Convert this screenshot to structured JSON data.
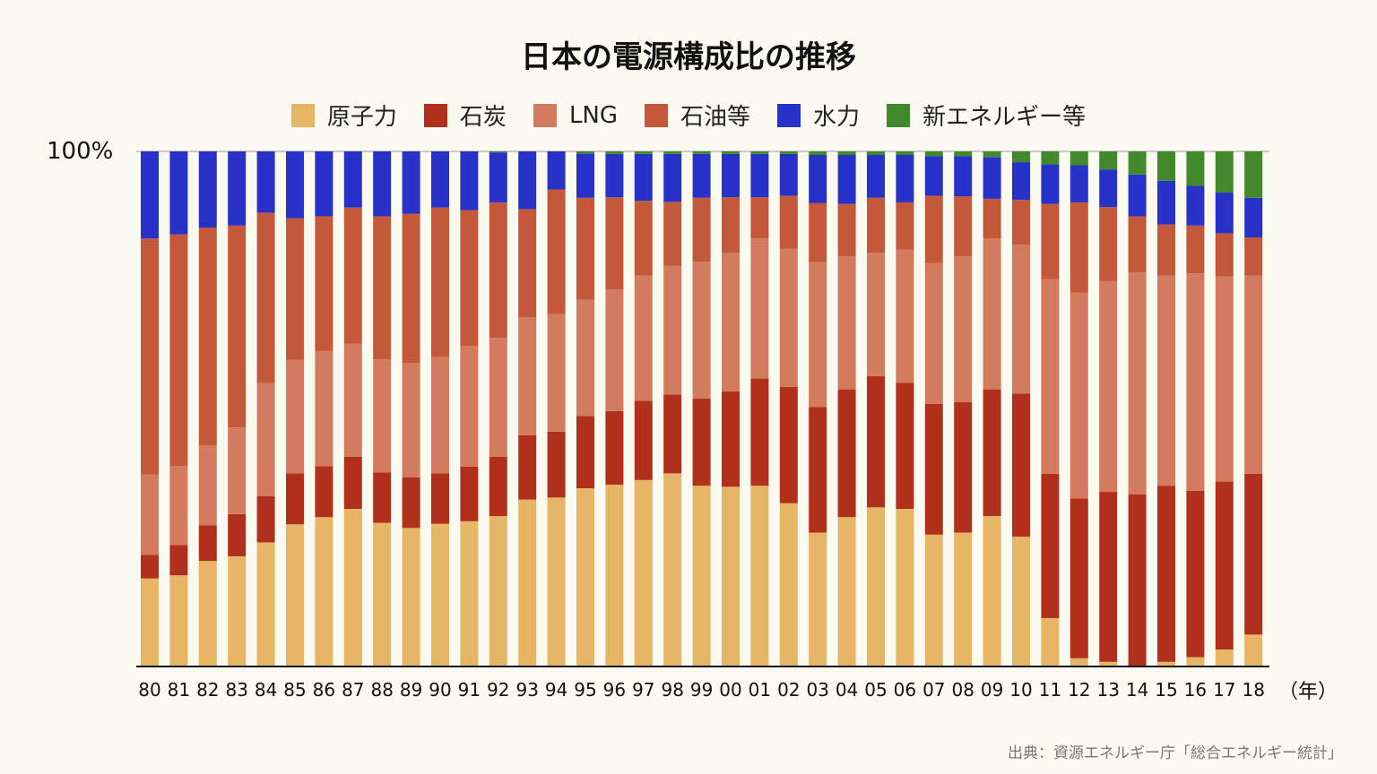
{
  "chart_data": {
    "type": "bar",
    "stacked": true,
    "percent_stacked": true,
    "title": "日本の電源構成比の推移",
    "ylabel_top": "100%",
    "xunit": "（年）",
    "source": "出典：資源エネルギー庁「総合エネルギー統計」",
    "ylim": [
      0,
      100
    ],
    "legend_position": "top",
    "grid": false,
    "categories": [
      "80",
      "81",
      "82",
      "83",
      "84",
      "85",
      "86",
      "87",
      "88",
      "89",
      "90",
      "91",
      "92",
      "93",
      "94",
      "95",
      "96",
      "97",
      "98",
      "99",
      "00",
      "01",
      "02",
      "03",
      "04",
      "05",
      "06",
      "07",
      "08",
      "09",
      "10",
      "11",
      "12",
      "13",
      "14",
      "15",
      "16",
      "17",
      "18"
    ],
    "series": [
      {
        "name": "原子力",
        "color": "#e6b566",
        "values": [
          17.1,
          17.7,
          20.5,
          21.4,
          24.1,
          27.6,
          29.0,
          30.6,
          27.9,
          26.9,
          27.7,
          28.2,
          29.2,
          32.4,
          32.8,
          34.6,
          35.3,
          36.2,
          37.5,
          35.1,
          34.9,
          35.1,
          31.7,
          26.0,
          29.0,
          30.9,
          30.6,
          25.6,
          26.0,
          29.2,
          25.2,
          9.4,
          1.6,
          0.9,
          0.0,
          0.9,
          1.8,
          3.3,
          6.2
        ]
      },
      {
        "name": "石炭",
        "color": "#b0301c",
        "values": [
          4.6,
          5.9,
          6.9,
          8.2,
          9.0,
          9.9,
          9.9,
          10.1,
          9.8,
          9.8,
          9.8,
          10.6,
          11.5,
          12.5,
          12.8,
          14.0,
          14.3,
          15.4,
          15.3,
          16.9,
          18.5,
          20.8,
          22.6,
          24.4,
          24.8,
          25.5,
          24.5,
          25.4,
          25.3,
          24.6,
          27.8,
          28.0,
          31.0,
          33.0,
          33.4,
          34.2,
          32.3,
          32.6,
          31.2
        ]
      },
      {
        "name": "LNG",
        "color": "#d37b5e",
        "values": [
          15.6,
          15.3,
          15.5,
          16.8,
          21.9,
          22.0,
          22.4,
          22.0,
          21.9,
          22.2,
          22.6,
          23.4,
          23.1,
          22.9,
          22.8,
          22.6,
          23.6,
          24.3,
          25.0,
          26.6,
          26.9,
          27.2,
          26.8,
          28.1,
          25.8,
          23.9,
          25.8,
          27.3,
          28.3,
          29.3,
          28.9,
          37.8,
          40.0,
          40.9,
          43.1,
          40.8,
          42.2,
          39.8,
          38.5
        ]
      },
      {
        "name": "石油等",
        "color": "#c3583a",
        "values": [
          45.8,
          45.0,
          42.3,
          39.2,
          33.1,
          27.5,
          26.1,
          26.4,
          27.8,
          29.0,
          29.0,
          26.4,
          26.3,
          21.0,
          24.2,
          19.8,
          17.9,
          14.5,
          12.4,
          12.4,
          10.8,
          8.0,
          10.3,
          11.5,
          10.2,
          10.7,
          9.2,
          13.1,
          11.7,
          7.7,
          8.7,
          14.6,
          17.5,
          14.4,
          10.9,
          9.9,
          9.3,
          8.4,
          7.4
        ]
      },
      {
        "name": "水力",
        "color": "#2832c8",
        "values": [
          16.9,
          16.1,
          14.8,
          14.4,
          11.9,
          13.0,
          12.6,
          10.9,
          12.6,
          12.1,
          10.9,
          11.4,
          9.7,
          11.2,
          7.4,
          8.6,
          8.4,
          9.1,
          9.3,
          8.5,
          8.4,
          8.4,
          8.1,
          9.3,
          9.5,
          8.3,
          9.2,
          7.7,
          7.8,
          8.1,
          7.3,
          7.7,
          7.2,
          7.3,
          8.1,
          8.5,
          7.7,
          7.9,
          7.7
        ]
      },
      {
        "name": "新エネルギー等",
        "color": "#418a2c",
        "values": [
          0,
          0,
          0,
          0,
          0,
          0,
          0,
          0,
          0,
          0,
          0,
          0,
          0.2,
          0,
          0,
          0.4,
          0.5,
          0.5,
          0.5,
          0.5,
          0.5,
          0.5,
          0.5,
          0.7,
          0.7,
          0.7,
          0.7,
          0.9,
          0.9,
          1.1,
          2.1,
          2.5,
          2.7,
          3.5,
          4.5,
          5.7,
          6.7,
          8.0,
          9.0
        ]
      }
    ]
  }
}
